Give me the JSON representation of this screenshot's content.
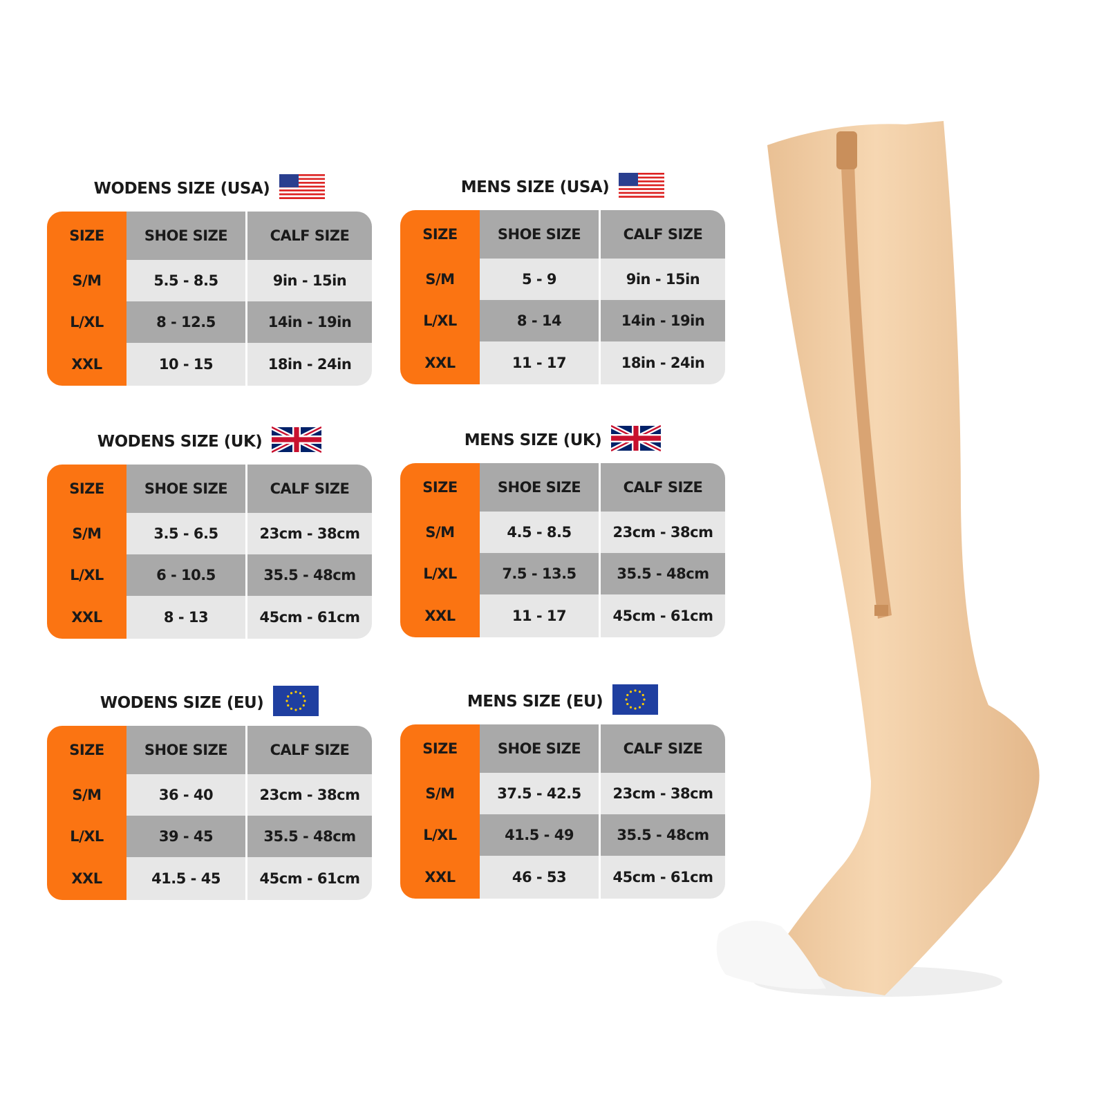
{
  "columns": {
    "size": "SIZE",
    "shoe": "SHOE  SIZE",
    "calf": "CALF SIZE"
  },
  "colors": {
    "size_column": "#fb7412",
    "header": "#a9a9a9",
    "row_light": "#e7e7e7",
    "row_dark": "#a9a9a9",
    "sock": "#f2cfa6"
  },
  "charts": [
    {
      "title": "WODENS SIZE  (USA)",
      "flag": "us-flag-icon",
      "rows": [
        {
          "size": "S/M",
          "shoe": "5.5 - 8.5",
          "calf": "9in - 15in"
        },
        {
          "size": "L/XL",
          "shoe": "8 - 12.5",
          "calf": "14in - 19in"
        },
        {
          "size": "XXL",
          "shoe": "10 - 15",
          "calf": "18in - 24in"
        }
      ]
    },
    {
      "title": "MENS SIZE (USA)",
      "flag": "us-flag-icon",
      "rows": [
        {
          "size": "S/M",
          "shoe": "5 - 9",
          "calf": "9in - 15in"
        },
        {
          "size": "L/XL",
          "shoe": "8 - 14",
          "calf": "14in - 19in"
        },
        {
          "size": "XXL",
          "shoe": "11 - 17",
          "calf": "18in - 24in"
        }
      ]
    },
    {
      "title": "WODENS SIZE  (UK)",
      "flag": "uk-flag-icon",
      "rows": [
        {
          "size": "S/M",
          "shoe": "3.5 - 6.5",
          "calf": "23cm - 38cm"
        },
        {
          "size": "L/XL",
          "shoe": "6 - 10.5",
          "calf": "35.5 - 48cm"
        },
        {
          "size": "XXL",
          "shoe": "8 - 13",
          "calf": "45cm - 61cm"
        }
      ]
    },
    {
      "title": "MENS SIZE (UK)",
      "flag": "uk-flag-icon",
      "rows": [
        {
          "size": "S/M",
          "shoe": "4.5 - 8.5",
          "calf": "23cm - 38cm"
        },
        {
          "size": "L/XL",
          "shoe": "7.5 - 13.5",
          "calf": "35.5 - 48cm"
        },
        {
          "size": "XXL",
          "shoe": "11 - 17",
          "calf": "45cm - 61cm"
        }
      ]
    },
    {
      "title": "WODENS SIZE  (EU)",
      "flag": "eu-flag-icon",
      "rows": [
        {
          "size": "S/M",
          "shoe": "36 - 40",
          "calf": "23cm - 38cm"
        },
        {
          "size": "L/XL",
          "shoe": "39 - 45",
          "calf": "35.5 - 48cm"
        },
        {
          "size": "XXL",
          "shoe": "41.5 - 45",
          "calf": "45cm - 61cm"
        }
      ]
    },
    {
      "title": "MENS SIZE (EU)",
      "flag": "eu-flag-icon",
      "rows": [
        {
          "size": "S/M",
          "shoe": "37.5 - 42.5",
          "calf": "23cm - 38cm"
        },
        {
          "size": "L/XL",
          "shoe": "41.5 - 49",
          "calf": "35.5 - 48cm"
        },
        {
          "size": "XXL",
          "shoe": "46 - 53",
          "calf": "45cm - 61cm"
        }
      ]
    }
  ]
}
